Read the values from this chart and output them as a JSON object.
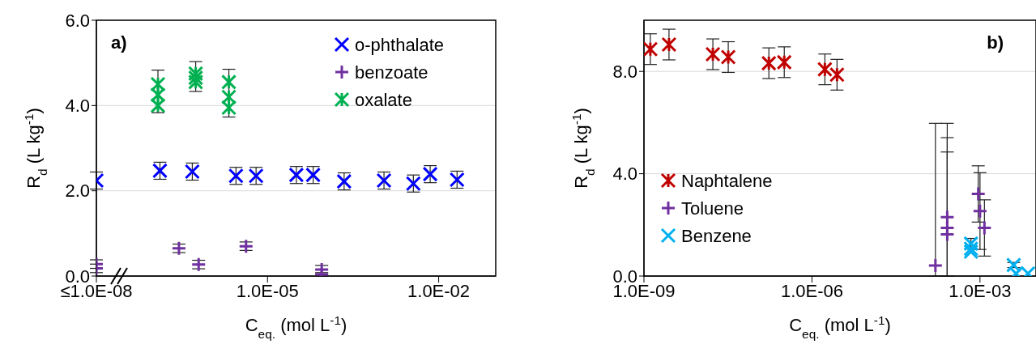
{
  "chart_data": [
    {
      "type": "scatter",
      "annotations": [
        "a)"
      ],
      "xlabel": "C$_{eq.}$ (mol L$^{-1}$)",
      "ylabel": "R$_{d}$ (L kg$^{-1}$)",
      "log": "x",
      "grid": "y",
      "legend": "top right",
      "xlim": [
        1e-08,
        0.1
      ],
      "xticks": [
        {
          "value": 1e-08,
          "label": "≤1.0E-08"
        },
        {
          "value": 1e-05,
          "label": "1.0E-05"
        },
        {
          "value": 0.01,
          "label": "1.0E-02"
        }
      ],
      "ylim": [
        0,
        6
      ],
      "yticks": [
        {
          "value": 0,
          "label": "0.0"
        },
        {
          "value": 2,
          "label": "2.0"
        },
        {
          "value": 4,
          "label": "4.0"
        },
        {
          "value": 6,
          "label": "6.0"
        }
      ],
      "series": [
        {
          "name": "o-phthalate",
          "color": "#0000ff",
          "marker": "x",
          "x": [
            1e-08,
            1.3e-07,
            4.8e-07,
            2.8e-06,
            6.3e-06,
            3.2e-05,
            6.3e-05,
            0.00022,
            0.0011,
            0.0036,
            0.0071,
            0.021
          ],
          "values": [
            2.24,
            2.47,
            2.45,
            2.35,
            2.35,
            2.37,
            2.37,
            2.22,
            2.24,
            2.17,
            2.39,
            2.26
          ],
          "errors": [
            0.2,
            0.2,
            0.2,
            0.2,
            0.2,
            0.2,
            0.2,
            0.2,
            0.2,
            0.2,
            0.2,
            0.2
          ]
        },
        {
          "name": "benzoate",
          "color": "#7030a0",
          "marker": "plus",
          "x": [
            1e-08,
            1e-08,
            2.8e-07,
            6.2e-07,
            4.2e-06,
            8.9e-05,
            8.9e-05
          ],
          "values": [
            0.28,
            0.18,
            0.65,
            0.27,
            0.7,
            0.15,
            0.04
          ],
          "errors": [
            0.1,
            0.1,
            0.1,
            0.1,
            0.1,
            0.1,
            0.04
          ]
        },
        {
          "name": "oxalate",
          "color": "#00b050",
          "marker": "cross",
          "x": [
            1.2e-07,
            1.2e-07,
            1.2e-07,
            5.5e-07,
            5.5e-07,
            5.5e-07,
            2.1e-06,
            2.1e-06,
            2.1e-06
          ],
          "values": [
            4.5,
            4.25,
            4.0,
            4.75,
            4.65,
            4.55,
            4.55,
            4.2,
            3.95
          ],
          "errors": [
            [
              3.83,
              4.83
            ],
            null,
            null,
            null,
            [
              4.33,
              5.03
            ],
            null,
            null,
            [
              3.73,
              4.85
            ],
            null
          ]
        }
      ]
    },
    {
      "type": "scatter",
      "annotations": [
        "b)"
      ],
      "xlabel": "C$_{eq.}$ (mol L$^{-1}$)",
      "ylabel": "R$_{d}$ (L kg$^{-1}$)",
      "log": "x",
      "grid": "y",
      "legend": "bottom left",
      "xlim": [
        1e-09,
        0.01
      ],
      "xticks": [
        {
          "value": 1e-09,
          "label": "1.0E-09"
        },
        {
          "value": 1e-06,
          "label": "1.0E-06"
        },
        {
          "value": 0.001,
          "label": "1.0E-03"
        }
      ],
      "ylim": [
        0,
        10
      ],
      "yticks": [
        {
          "value": 0,
          "label": "0.0"
        },
        {
          "value": 4,
          "label": "4.0"
        },
        {
          "value": 8,
          "label": "8.0"
        }
      ],
      "series": [
        {
          "name": "Naphtalene",
          "color": "#c00000",
          "marker": "cross",
          "x": [
            1.3e-09,
            2.8e-09,
            1.7e-08,
            3.2e-08,
            1.7e-07,
            3.2e-07,
            1.7e-06,
            2.8e-06
          ],
          "values": [
            8.87,
            9.05,
            8.67,
            8.56,
            8.32,
            8.36,
            8.08,
            7.87
          ],
          "errors": [
            0.6,
            0.6,
            0.6,
            0.6,
            0.6,
            0.6,
            0.6,
            0.6
          ]
        },
        {
          "name": "Toluene",
          "color": "#7030a0",
          "marker": "plus",
          "x": [
            0.00016,
            0.00026,
            0.00026,
            0.00026,
            0.00093,
            0.001,
            0.0012
          ],
          "values": [
            0.41,
            2.3,
            1.88,
            1.63,
            3.21,
            2.54,
            1.88
          ],
          "errors": [
            [
              0,
              5.97
            ],
            [
              0,
              5.97
            ],
            [
              0,
              5.41
            ],
            [
              0,
              4.85
            ],
            1.1,
            1.5,
            1.1
          ]
        },
        {
          "name": "Benzene",
          "color": "#00b0f0",
          "marker": "x",
          "x": [
            0.00069,
            0.00069,
            0.00069,
            0.004,
            0.0044,
            0.0072
          ],
          "values": [
            1.27,
            1.07,
            0.95,
            0.43,
            0.1,
            0.1
          ],
          "errors": [
            0.2,
            null,
            null,
            0.1,
            null,
            null
          ]
        }
      ]
    }
  ]
}
